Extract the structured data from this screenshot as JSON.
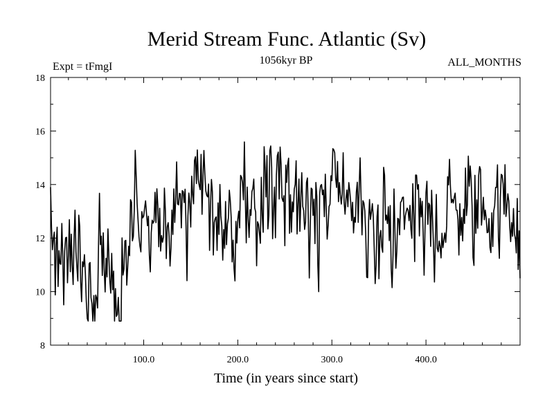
{
  "chart_data": {
    "type": "line",
    "title": "Merid Stream Func. Atlantic (Sv)",
    "subtitle_left": "Expt = tFmgI",
    "subtitle_center": "1056kyr BP",
    "subtitle_right": "ALL_MONTHS",
    "xlabel": "Time (in years since start)",
    "ylabel": "",
    "xlim": [
      1,
      500
    ],
    "ylim": [
      8,
      18
    ],
    "xticks": [
      100,
      200,
      300,
      400
    ],
    "xtick_labels": [
      "100.0",
      "200.0",
      "300.0",
      "400.0"
    ],
    "yticks": [
      8,
      10,
      12,
      14,
      16,
      18
    ],
    "ytick_labels": [
      "8",
      "10",
      "12",
      "14",
      "16",
      "18"
    ],
    "anchors": {
      "x": [
        1,
        5,
        10,
        15,
        20,
        25,
        30,
        35,
        40,
        45,
        50,
        55,
        60,
        65,
        70,
        75,
        80,
        85,
        90,
        95,
        100,
        110,
        120,
        130,
        140,
        150,
        160,
        170,
        180,
        186,
        190,
        200,
        210,
        215,
        220,
        225,
        230,
        240,
        245,
        250,
        255,
        260,
        265,
        270,
        275,
        280,
        290,
        300,
        310,
        320,
        330,
        340,
        345,
        350,
        360,
        370,
        380,
        390,
        398,
        400,
        410,
        420,
        430,
        440,
        450,
        460,
        470,
        480,
        490,
        495,
        497,
        500
      ],
      "y": [
        12.5,
        12.3,
        11.8,
        11.2,
        11.3,
        11.0,
        10.9,
        11.3,
        10.4,
        10.2,
        10.5,
        10.7,
        10.4,
        10.8,
        10.6,
        11.0,
        11.5,
        12.0,
        12.3,
        12.0,
        12.4,
        12.7,
        13.0,
        13.2,
        12.7,
        13.0,
        13.3,
        13.1,
        13.4,
        12.0,
        12.8,
        13.0,
        13.0,
        12.8,
        13.3,
        13.8,
        13.5,
        13.6,
        14.2,
        13.8,
        13.4,
        13.2,
        13.7,
        14.0,
        13.8,
        12.8,
        12.9,
        13.3,
        13.2,
        13.0,
        13.1,
        12.6,
        11.8,
        12.6,
        12.9,
        13.2,
        12.8,
        12.7,
        11.6,
        12.5,
        13.0,
        12.6,
        13.1,
        13.2,
        12.9,
        13.4,
        13.3,
        13.2,
        13.0,
        12.6,
        14.2,
        11.8
      ]
    },
    "noise_amplitude": 1.05,
    "num_points": 500,
    "grid": false,
    "line_color": "#000000"
  }
}
